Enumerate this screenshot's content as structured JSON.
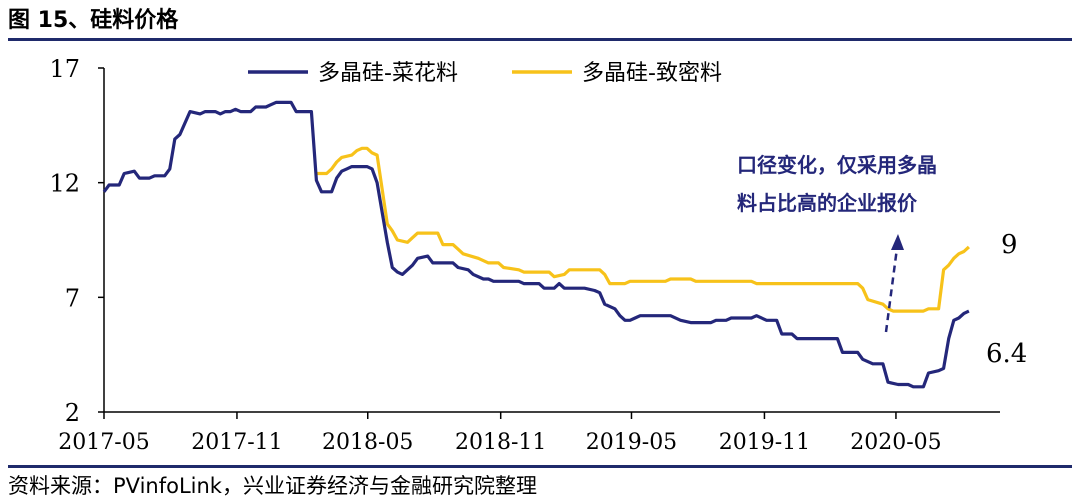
{
  "figure_title": "图 15、硅料价格",
  "source": "资料来源：PVinfoLink，兴业证券经济与金融研究院整理",
  "colors": {
    "polysilicon_cauliflower": "#24277a",
    "polysilicon_dense": "#f7c21a",
    "header_rule": "#1f2a6b"
  },
  "annotation": {
    "line1": "口径变化，仅采用多晶",
    "line2": "料占比高的企业报价"
  },
  "chart_data": {
    "type": "line",
    "title": "",
    "xlabel": "",
    "ylabel": "",
    "ylim": [
      2,
      17
    ],
    "yticks": [
      "2",
      "7",
      "12",
      "17"
    ],
    "xticks": [
      "2017-05",
      "2017-11",
      "2018-05",
      "2018-11",
      "2019-05",
      "2019-11",
      "2020-05"
    ],
    "xlim": [
      "2017-05-01",
      "2020-09-22"
    ],
    "legend_position": "top",
    "grid": false,
    "end_labels": [
      {
        "text": "9",
        "series": "多晶硅-致密料"
      },
      {
        "text": "6.4",
        "series": "多晶硅-菜花料"
      }
    ],
    "series": [
      {
        "name": "多晶硅-菜花料",
        "points": [
          [
            "2017-05-01",
            11.6
          ],
          [
            "2017-05-08",
            11.9
          ],
          [
            "2017-05-22",
            11.9
          ],
          [
            "2017-05-29",
            12.4
          ],
          [
            "2017-06-12",
            12.5
          ],
          [
            "2017-06-19",
            12.2
          ],
          [
            "2017-07-03",
            12.2
          ],
          [
            "2017-07-10",
            12.3
          ],
          [
            "2017-07-24",
            12.3
          ],
          [
            "2017-07-31",
            12.6
          ],
          [
            "2017-08-07",
            13.9
          ],
          [
            "2017-08-14",
            14.1
          ],
          [
            "2017-08-28",
            15.1
          ],
          [
            "2017-09-11",
            15.0
          ],
          [
            "2017-09-18",
            15.1
          ],
          [
            "2017-10-02",
            15.1
          ],
          [
            "2017-10-09",
            15.0
          ],
          [
            "2017-10-16",
            15.1
          ],
          [
            "2017-10-23",
            15.1
          ],
          [
            "2017-10-30",
            15.2
          ],
          [
            "2017-11-06",
            15.1
          ],
          [
            "2017-11-20",
            15.1
          ],
          [
            "2017-11-27",
            15.3
          ],
          [
            "2017-12-11",
            15.3
          ],
          [
            "2017-12-18",
            15.4
          ],
          [
            "2017-12-25",
            15.5
          ],
          [
            "2018-01-15",
            15.5
          ],
          [
            "2018-01-22",
            15.1
          ],
          [
            "2018-02-12",
            15.1
          ],
          [
            "2018-02-19",
            12.1
          ],
          [
            "2018-02-26",
            11.6
          ],
          [
            "2018-03-12",
            11.6
          ],
          [
            "2018-03-19",
            12.2
          ],
          [
            "2018-03-26",
            12.5
          ],
          [
            "2018-04-02",
            12.6
          ],
          [
            "2018-04-09",
            12.7
          ],
          [
            "2018-04-30",
            12.7
          ],
          [
            "2018-05-07",
            12.6
          ],
          [
            "2018-05-14",
            12.0
          ],
          [
            "2018-05-28",
            9.4
          ],
          [
            "2018-06-04",
            8.3
          ],
          [
            "2018-06-11",
            8.1
          ],
          [
            "2018-06-18",
            8.0
          ],
          [
            "2018-07-02",
            8.4
          ],
          [
            "2018-07-09",
            8.7
          ],
          [
            "2018-07-23",
            8.8
          ],
          [
            "2018-07-30",
            8.5
          ],
          [
            "2018-08-27",
            8.5
          ],
          [
            "2018-09-03",
            8.3
          ],
          [
            "2018-09-17",
            8.2
          ],
          [
            "2018-09-24",
            8.0
          ],
          [
            "2018-10-08",
            7.8
          ],
          [
            "2018-10-15",
            7.8
          ],
          [
            "2018-10-22",
            7.7
          ],
          [
            "2018-11-26",
            7.7
          ],
          [
            "2018-12-03",
            7.6
          ],
          [
            "2018-12-24",
            7.6
          ],
          [
            "2018-12-31",
            7.4
          ],
          [
            "2019-01-14",
            7.4
          ],
          [
            "2019-01-21",
            7.6
          ],
          [
            "2019-01-28",
            7.4
          ],
          [
            "2019-02-25",
            7.4
          ],
          [
            "2019-03-11",
            7.3
          ],
          [
            "2019-03-18",
            7.2
          ],
          [
            "2019-03-25",
            6.7
          ],
          [
            "2019-04-08",
            6.5
          ],
          [
            "2019-04-15",
            6.2
          ],
          [
            "2019-04-22",
            6.0
          ],
          [
            "2019-04-29",
            6.0
          ],
          [
            "2019-05-06",
            6.1
          ],
          [
            "2019-05-13",
            6.2
          ],
          [
            "2019-06-24",
            6.2
          ],
          [
            "2019-07-08",
            6.0
          ],
          [
            "2019-07-22",
            5.9
          ],
          [
            "2019-08-19",
            5.9
          ],
          [
            "2019-08-26",
            6.0
          ],
          [
            "2019-09-09",
            6.0
          ],
          [
            "2019-09-16",
            6.1
          ],
          [
            "2019-10-14",
            6.1
          ],
          [
            "2019-10-21",
            6.2
          ],
          [
            "2019-11-04",
            6.0
          ],
          [
            "2019-11-18",
            6.0
          ],
          [
            "2019-11-25",
            5.4
          ],
          [
            "2019-12-09",
            5.4
          ],
          [
            "2019-12-16",
            5.2
          ],
          [
            "2020-02-10",
            5.2
          ],
          [
            "2020-02-17",
            4.6
          ],
          [
            "2020-03-09",
            4.6
          ],
          [
            "2020-03-16",
            4.3
          ],
          [
            "2020-03-30",
            4.1
          ],
          [
            "2020-04-13",
            4.1
          ],
          [
            "2020-04-20",
            3.3
          ],
          [
            "2020-05-04",
            3.2
          ],
          [
            "2020-05-18",
            3.2
          ],
          [
            "2020-05-25",
            3.1
          ],
          [
            "2020-06-08",
            3.1
          ],
          [
            "2020-06-15",
            3.7
          ],
          [
            "2020-06-29",
            3.8
          ],
          [
            "2020-07-06",
            3.9
          ],
          [
            "2020-07-13",
            5.2
          ],
          [
            "2020-07-20",
            6.0
          ],
          [
            "2020-07-27",
            6.1
          ],
          [
            "2020-08-03",
            6.3
          ],
          [
            "2020-08-10",
            6.4
          ]
        ]
      },
      {
        "name": "多晶硅-致密料",
        "points": [
          [
            "2018-02-19",
            12.4
          ],
          [
            "2018-03-05",
            12.4
          ],
          [
            "2018-03-12",
            12.6
          ],
          [
            "2018-03-19",
            12.9
          ],
          [
            "2018-03-26",
            13.1
          ],
          [
            "2018-04-09",
            13.2
          ],
          [
            "2018-04-16",
            13.4
          ],
          [
            "2018-04-23",
            13.5
          ],
          [
            "2018-04-30",
            13.5
          ],
          [
            "2018-05-07",
            13.3
          ],
          [
            "2018-05-14",
            13.2
          ],
          [
            "2018-05-28",
            10.2
          ],
          [
            "2018-06-04",
            9.9
          ],
          [
            "2018-06-11",
            9.5
          ],
          [
            "2018-06-25",
            9.4
          ],
          [
            "2018-07-02",
            9.6
          ],
          [
            "2018-07-09",
            9.8
          ],
          [
            "2018-08-06",
            9.8
          ],
          [
            "2018-08-13",
            9.3
          ],
          [
            "2018-08-27",
            9.3
          ],
          [
            "2018-09-03",
            9.1
          ],
          [
            "2018-09-10",
            8.9
          ],
          [
            "2018-10-01",
            8.7
          ],
          [
            "2018-10-15",
            8.5
          ],
          [
            "2018-10-29",
            8.5
          ],
          [
            "2018-11-05",
            8.3
          ],
          [
            "2018-11-26",
            8.2
          ],
          [
            "2018-12-03",
            8.1
          ],
          [
            "2019-01-07",
            8.1
          ],
          [
            "2019-01-14",
            7.9
          ],
          [
            "2019-01-28",
            8.0
          ],
          [
            "2019-02-04",
            8.2
          ],
          [
            "2019-03-18",
            8.2
          ],
          [
            "2019-03-25",
            8.0
          ],
          [
            "2019-04-01",
            7.6
          ],
          [
            "2019-04-22",
            7.6
          ],
          [
            "2019-04-29",
            7.7
          ],
          [
            "2019-06-17",
            7.7
          ],
          [
            "2019-06-24",
            7.8
          ],
          [
            "2019-07-22",
            7.8
          ],
          [
            "2019-07-29",
            7.7
          ],
          [
            "2019-10-14",
            7.7
          ],
          [
            "2019-10-21",
            7.6
          ],
          [
            "2020-03-09",
            7.6
          ],
          [
            "2020-03-16",
            7.4
          ],
          [
            "2020-03-23",
            6.9
          ],
          [
            "2020-04-13",
            6.7
          ],
          [
            "2020-04-20",
            6.5
          ],
          [
            "2020-04-27",
            6.4
          ],
          [
            "2020-06-08",
            6.4
          ],
          [
            "2020-06-15",
            6.5
          ],
          [
            "2020-06-29",
            6.5
          ],
          [
            "2020-07-06",
            8.2
          ],
          [
            "2020-07-13",
            8.4
          ],
          [
            "2020-07-20",
            8.7
          ],
          [
            "2020-07-27",
            8.9
          ],
          [
            "2020-08-03",
            9.0
          ],
          [
            "2020-08-10",
            9.2
          ]
        ]
      }
    ]
  }
}
